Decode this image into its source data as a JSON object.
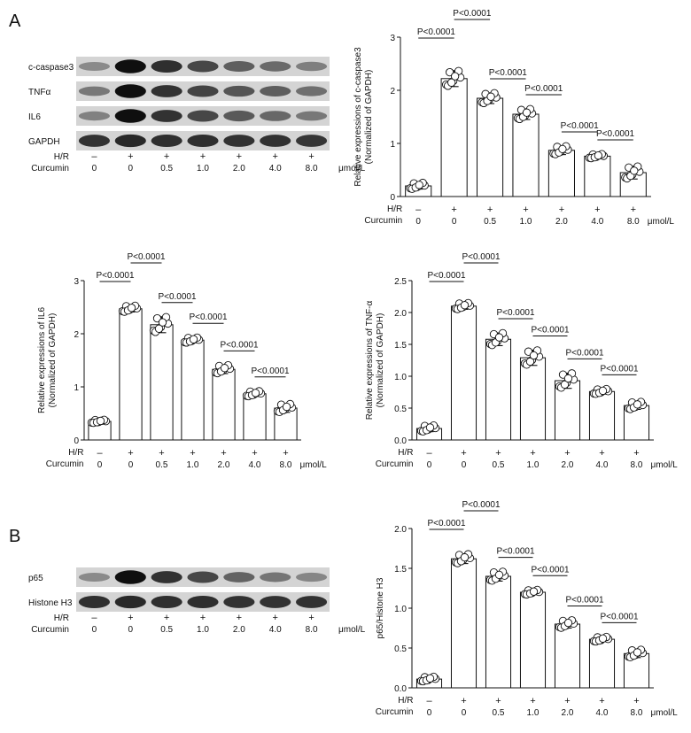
{
  "panel_labels": {
    "a": "A",
    "b": "B"
  },
  "blot_a": {
    "bands": [
      "c-caspase3",
      "TNFα",
      "IL6",
      "GAPDH"
    ],
    "row_hr_label": "H/R",
    "row_cur_label": "Curcumin",
    "hr": [
      "–",
      "+",
      "+",
      "+",
      "+",
      "+",
      "+"
    ],
    "curcumin": [
      "0",
      "0",
      "0.5",
      "1.0",
      "2.0",
      "4.0",
      "8.0"
    ],
    "unit": "μmol/L",
    "intensity": [
      [
        0.3,
        1.0,
        0.82,
        0.68,
        0.55,
        0.48,
        0.36
      ],
      [
        0.4,
        1.0,
        0.8,
        0.7,
        0.6,
        0.55,
        0.45
      ],
      [
        0.35,
        1.0,
        0.8,
        0.68,
        0.58,
        0.5,
        0.4
      ],
      [
        0.8,
        0.85,
        0.82,
        0.82,
        0.8,
        0.8,
        0.78
      ]
    ]
  },
  "blot_b": {
    "bands": [
      "p65",
      "Histone H3"
    ],
    "row_hr_label": "H/R",
    "row_cur_label": "Curcumin",
    "hr": [
      "–",
      "+",
      "+",
      "+",
      "+",
      "+",
      "+"
    ],
    "curcumin": [
      "0",
      "0",
      "0.5",
      "1.0",
      "2.0",
      "4.0",
      "8.0"
    ],
    "unit": "μmol/L",
    "intensity": [
      [
        0.3,
        1.0,
        0.8,
        0.68,
        0.52,
        0.42,
        0.32
      ],
      [
        0.82,
        0.85,
        0.82,
        0.82,
        0.8,
        0.8,
        0.8
      ]
    ]
  },
  "chart_data": [
    {
      "type": "bar",
      "ylabel": "Relative expressions of c-caspase3 (Normalized of GAPDH)",
      "ylabel_lines": [
        "Relative expressions of c-caspase3",
        "(Normalized of GAPDH)"
      ],
      "ylim": [
        0,
        3
      ],
      "yticks": [
        "0",
        "1",
        "2",
        "3"
      ],
      "categories": [
        "0",
        "0",
        "0.5",
        "1.0",
        "2.0",
        "4.0",
        "8.0"
      ],
      "hr": [
        "–",
        "+",
        "+",
        "+",
        "+",
        "+",
        "+"
      ],
      "row_hr_label": "H/R",
      "row_cur_label": "Curcumin",
      "unit": "μmol/L",
      "values": [
        0.2,
        2.22,
        1.85,
        1.55,
        0.87,
        0.76,
        0.45
      ],
      "sd": [
        0.06,
        0.15,
        0.1,
        0.1,
        0.08,
        0.04,
        0.12
      ],
      "brackets": [
        {
          "from": 0,
          "to": 1,
          "label": "P<0.0001"
        },
        {
          "from": 1,
          "to": 2,
          "label": "P<0.0001"
        },
        {
          "from": 2,
          "to": 3,
          "label": "P<0.0001"
        },
        {
          "from": 3,
          "to": 4,
          "label": "P<0.0001"
        },
        {
          "from": 4,
          "to": 5,
          "label": "P<0.0001"
        },
        {
          "from": 5,
          "to": 6,
          "label": "P<0.0001"
        }
      ]
    },
    {
      "type": "bar",
      "ylabel": "Relative expressions of IL6 (Normalized of GAPDH)",
      "ylabel_lines": [
        "Relative expressions of IL6",
        "(Normalized of GAPDH)"
      ],
      "ylim": [
        0,
        3
      ],
      "yticks": [
        "0",
        "1",
        "2",
        "3"
      ],
      "categories": [
        "0",
        "0",
        "0.5",
        "1.0",
        "2.0",
        "4.0",
        "8.0"
      ],
      "hr": [
        "–",
        "+",
        "+",
        "+",
        "+",
        "+",
        "+"
      ],
      "row_hr_label": "H/R",
      "row_cur_label": "Curcumin",
      "unit": "μmol/L",
      "values": [
        0.35,
        2.47,
        2.17,
        1.88,
        1.33,
        0.87,
        0.6
      ],
      "sd": [
        0.03,
        0.06,
        0.15,
        0.05,
        0.08,
        0.05,
        0.08
      ],
      "brackets": [
        {
          "from": 0,
          "to": 1,
          "label": "P<0.0001"
        },
        {
          "from": 1,
          "to": 2,
          "label": "P<0.0001"
        },
        {
          "from": 2,
          "to": 3,
          "label": "P<0.0001"
        },
        {
          "from": 3,
          "to": 4,
          "label": "P<0.0001"
        },
        {
          "from": 4,
          "to": 5,
          "label": "P<0.0001"
        },
        {
          "from": 5,
          "to": 6,
          "label": "P<0.0001"
        }
      ]
    },
    {
      "type": "bar",
      "ylabel": "Relative expressions of TNF-α (Normalized of GAPDH)",
      "ylabel_lines": [
        "Relative expressions of TNF-α",
        "(Normalized of GAPDH)"
      ],
      "ylim": [
        0,
        2.5
      ],
      "yticks": [
        "0.0",
        "0.5",
        "1.0",
        "1.5",
        "2.0",
        "2.5"
      ],
      "categories": [
        "0",
        "0",
        "0.5",
        "1.0",
        "2.0",
        "4.0",
        "8.0"
      ],
      "hr": [
        "–",
        "+",
        "+",
        "+",
        "+",
        "+",
        "+"
      ],
      "row_hr_label": "H/R",
      "row_cur_label": "Curcumin",
      "unit": "μmol/L",
      "values": [
        0.18,
        2.1,
        1.58,
        1.29,
        0.93,
        0.76,
        0.54
      ],
      "sd": [
        0.05,
        0.05,
        0.1,
        0.12,
        0.12,
        0.04,
        0.06
      ],
      "brackets": [
        {
          "from": 0,
          "to": 1,
          "label": "P<0.0001"
        },
        {
          "from": 1,
          "to": 2,
          "label": "P<0.0001"
        },
        {
          "from": 2,
          "to": 3,
          "label": "P<0.0001"
        },
        {
          "from": 3,
          "to": 4,
          "label": "P<0.0001"
        },
        {
          "from": 4,
          "to": 5,
          "label": "P<0.0001"
        },
        {
          "from": 5,
          "to": 6,
          "label": "P<0.0001"
        }
      ]
    },
    {
      "type": "bar",
      "ylabel": "p65/Histone H3",
      "ylabel_lines": [
        "p65/Histone H3"
      ],
      "ylim": [
        0,
        2.0
      ],
      "yticks": [
        "0.0",
        "0.5",
        "1.0",
        "1.5",
        "2.0"
      ],
      "categories": [
        "0",
        "0",
        "0.5",
        "1.0",
        "2.0",
        "4.0",
        "8.0"
      ],
      "hr": [
        "–",
        "+",
        "+",
        "+",
        "+",
        "+",
        "+"
      ],
      "row_hr_label": "H/R",
      "row_cur_label": "Curcumin",
      "unit": "μmol/L",
      "values": [
        0.11,
        1.62,
        1.4,
        1.2,
        0.8,
        0.61,
        0.43
      ],
      "sd": [
        0.03,
        0.06,
        0.06,
        0.03,
        0.05,
        0.03,
        0.05
      ],
      "brackets": [
        {
          "from": 0,
          "to": 1,
          "label": "P<0.0001"
        },
        {
          "from": 1,
          "to": 2,
          "label": "P<0.0001"
        },
        {
          "from": 2,
          "to": 3,
          "label": "P<0.0001"
        },
        {
          "from": 3,
          "to": 4,
          "label": "P<0.0001"
        },
        {
          "from": 4,
          "to": 5,
          "label": "P<0.0001"
        },
        {
          "from": 5,
          "to": 6,
          "label": "P<0.0001"
        }
      ]
    }
  ]
}
